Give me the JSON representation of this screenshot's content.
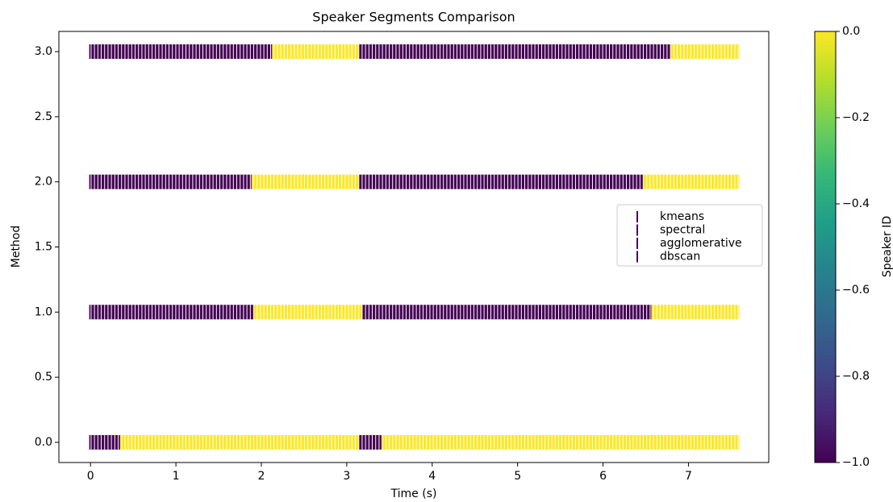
{
  "chart_data": {
    "type": "scatter",
    "title": "Speaker Segments Comparison",
    "x_label": "Time (s)",
    "y_label": "Method",
    "xlim": [
      -0.37,
      7.94
    ],
    "xticks": [
      0,
      1,
      2,
      3,
      4,
      5,
      6,
      7
    ],
    "ylim": [
      -0.155,
      3.155
    ],
    "yticks": [
      {
        "value": 0,
        "label": "0.0"
      },
      {
        "value": 0.5,
        "label": "0.5"
      },
      {
        "value": 1,
        "label": "1.0"
      },
      {
        "value": 1.5,
        "label": "1.5"
      },
      {
        "value": 2,
        "label": "2.0"
      },
      {
        "value": 2.5,
        "label": "2.5"
      },
      {
        "value": 3,
        "label": "3.0"
      }
    ],
    "colormap": "viridis",
    "clim": [
      -1,
      0
    ],
    "colorbar_label": "Speaker ID",
    "colorbar_ticks": [
      {
        "value": -1,
        "label": "−1.0"
      },
      {
        "value": -0.8,
        "label": "−0.8"
      },
      {
        "value": -0.6,
        "label": "−0.6"
      },
      {
        "value": -0.4,
        "label": "−0.4"
      },
      {
        "value": -0.2,
        "label": "−0.2"
      },
      {
        "value": 0,
        "label": "0.0"
      }
    ],
    "legend": "center right",
    "legend_color": "#440154",
    "series": [
      {
        "name": "kmeans",
        "y": 0,
        "runs": [
          {
            "start": 0,
            "end": 0.34,
            "speaker": -1
          },
          {
            "start": 0.36,
            "end": 3.14,
            "speaker": 0
          },
          {
            "start": 3.16,
            "end": 3.4,
            "speaker": -1
          },
          {
            "start": 3.42,
            "end": 7.58,
            "speaker": 0
          }
        ]
      },
      {
        "name": "spectral",
        "y": 1,
        "runs": [
          {
            "start": 0,
            "end": 1.9,
            "speaker": -1
          },
          {
            "start": 1.92,
            "end": 3.18,
            "speaker": 0
          },
          {
            "start": 3.2,
            "end": 6.56,
            "speaker": -1
          },
          {
            "start": 6.58,
            "end": 7.58,
            "speaker": 0
          }
        ]
      },
      {
        "name": "agglomerative",
        "y": 2,
        "runs": [
          {
            "start": 0,
            "end": 1.88,
            "speaker": -1
          },
          {
            "start": 1.9,
            "end": 3.14,
            "speaker": 0
          },
          {
            "start": 3.16,
            "end": 6.46,
            "speaker": -1
          },
          {
            "start": 6.48,
            "end": 7.58,
            "speaker": 0
          }
        ]
      },
      {
        "name": "dbscan",
        "y": 3,
        "runs": [
          {
            "start": 0,
            "end": 2.12,
            "speaker": -1
          },
          {
            "start": 2.14,
            "end": 3.14,
            "speaker": 0
          },
          {
            "start": 3.16,
            "end": 6.78,
            "speaker": -1
          },
          {
            "start": 6.8,
            "end": 7.58,
            "speaker": 0
          }
        ]
      }
    ]
  }
}
